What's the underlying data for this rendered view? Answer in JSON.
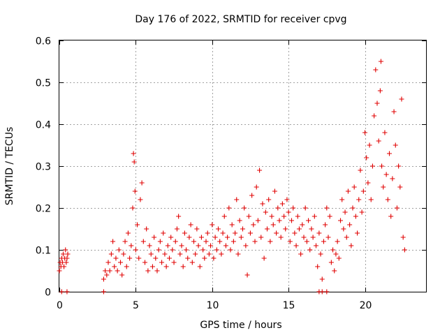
{
  "chart_data": {
    "type": "scatter",
    "title": "Day 176 of 2022, SRMTID for receiver cpvg",
    "xlabel": "GPS time / hours",
    "ylabel": "SRMTID / TECUs",
    "xlim": [
      0,
      24
    ],
    "ylim": [
      0,
      0.6
    ],
    "x_ticks": [
      0,
      5,
      10,
      15,
      20
    ],
    "x_tick_labels": [
      "0",
      "5",
      "10",
      "15",
      "20"
    ],
    "y_ticks": [
      0,
      0.1,
      0.2,
      0.3,
      0.4,
      0.5,
      0.6
    ],
    "y_tick_labels": [
      "0",
      "0.1",
      "0.2",
      "0.3",
      "0.4",
      "0.5",
      "0.6"
    ],
    "grid": true,
    "marker": "+",
    "color": "#e00000",
    "series": [
      {
        "name": "SRMTID",
        "points": [
          [
            0.0,
            0.05
          ],
          [
            0.05,
            0.07
          ],
          [
            0.1,
            0.06
          ],
          [
            0.15,
            0.08
          ],
          [
            0.2,
            0.07
          ],
          [
            0.25,
            0.09
          ],
          [
            0.3,
            0.06
          ],
          [
            0.35,
            0.08
          ],
          [
            0.4,
            0.1
          ],
          [
            0.45,
            0.07
          ],
          [
            0.5,
            0.08
          ],
          [
            0.55,
            0.09
          ],
          [
            0.15,
            0.0
          ],
          [
            0.5,
            0.0
          ],
          [
            2.9,
            0.0
          ],
          [
            17.0,
            0.0
          ],
          [
            17.2,
            0.0
          ],
          [
            17.5,
            0.0
          ],
          [
            2.9,
            0.03
          ],
          [
            3.0,
            0.05
          ],
          [
            3.1,
            0.04
          ],
          [
            3.2,
            0.07
          ],
          [
            3.3,
            0.05
          ],
          [
            3.4,
            0.09
          ],
          [
            3.5,
            0.12
          ],
          [
            3.6,
            0.06
          ],
          [
            3.7,
            0.08
          ],
          [
            3.8,
            0.05
          ],
          [
            3.9,
            0.1
          ],
          [
            4.0,
            0.07
          ],
          [
            4.1,
            0.04
          ],
          [
            4.2,
            0.09
          ],
          [
            4.3,
            0.12
          ],
          [
            4.4,
            0.06
          ],
          [
            4.5,
            0.14
          ],
          [
            4.6,
            0.08
          ],
          [
            4.7,
            0.11
          ],
          [
            4.8,
            0.2
          ],
          [
            4.85,
            0.33
          ],
          [
            4.9,
            0.31
          ],
          [
            4.95,
            0.24
          ],
          [
            5.0,
            0.1
          ],
          [
            5.1,
            0.16
          ],
          [
            5.2,
            0.08
          ],
          [
            5.3,
            0.22
          ],
          [
            5.4,
            0.26
          ],
          [
            5.5,
            0.12
          ],
          [
            5.6,
            0.07
          ],
          [
            5.7,
            0.15
          ],
          [
            5.8,
            0.05
          ],
          [
            5.9,
            0.11
          ],
          [
            6.0,
            0.09
          ],
          [
            6.1,
            0.06
          ],
          [
            6.2,
            0.13
          ],
          [
            6.3,
            0.08
          ],
          [
            6.4,
            0.05
          ],
          [
            6.5,
            0.1
          ],
          [
            6.6,
            0.12
          ],
          [
            6.7,
            0.07
          ],
          [
            6.8,
            0.14
          ],
          [
            6.9,
            0.09
          ],
          [
            7.0,
            0.06
          ],
          [
            7.1,
            0.11
          ],
          [
            7.2,
            0.08
          ],
          [
            7.3,
            0.13
          ],
          [
            7.4,
            0.1
          ],
          [
            7.5,
            0.07
          ],
          [
            7.6,
            0.12
          ],
          [
            7.7,
            0.15
          ],
          [
            7.8,
            0.18
          ],
          [
            7.9,
            0.09
          ],
          [
            8.0,
            0.11
          ],
          [
            8.1,
            0.06
          ],
          [
            8.2,
            0.14
          ],
          [
            8.3,
            0.1
          ],
          [
            8.4,
            0.08
          ],
          [
            8.5,
            0.13
          ],
          [
            8.6,
            0.16
          ],
          [
            8.7,
            0.07
          ],
          [
            8.8,
            0.12
          ],
          [
            8.9,
            0.09
          ],
          [
            9.0,
            0.15
          ],
          [
            9.1,
            0.11
          ],
          [
            9.2,
            0.06
          ],
          [
            9.3,
            0.13
          ],
          [
            9.4,
            0.1
          ],
          [
            9.5,
            0.08
          ],
          [
            9.6,
            0.12
          ],
          [
            9.7,
            0.14
          ],
          [
            9.8,
            0.09
          ],
          [
            9.9,
            0.11
          ],
          [
            10.0,
            0.16
          ],
          [
            10.1,
            0.08
          ],
          [
            10.2,
            0.13
          ],
          [
            10.3,
            0.1
          ],
          [
            10.4,
            0.15
          ],
          [
            10.5,
            0.12
          ],
          [
            10.6,
            0.09
          ],
          [
            10.7,
            0.14
          ],
          [
            10.8,
            0.18
          ],
          [
            10.9,
            0.11
          ],
          [
            11.0,
            0.13
          ],
          [
            11.1,
            0.2
          ],
          [
            11.2,
            0.1
          ],
          [
            11.3,
            0.16
          ],
          [
            11.4,
            0.12
          ],
          [
            11.5,
            0.14
          ],
          [
            11.6,
            0.22
          ],
          [
            11.7,
            0.09
          ],
          [
            11.8,
            0.17
          ],
          [
            11.9,
            0.13
          ],
          [
            12.0,
            0.15
          ],
          [
            12.1,
            0.2
          ],
          [
            12.2,
            0.11
          ],
          [
            12.3,
            0.04
          ],
          [
            12.4,
            0.18
          ],
          [
            12.5,
            0.14
          ],
          [
            12.6,
            0.23
          ],
          [
            12.7,
            0.16
          ],
          [
            12.8,
            0.12
          ],
          [
            12.9,
            0.25
          ],
          [
            13.0,
            0.17
          ],
          [
            13.1,
            0.29
          ],
          [
            13.2,
            0.13
          ],
          [
            13.3,
            0.21
          ],
          [
            13.4,
            0.08
          ],
          [
            13.5,
            0.19
          ],
          [
            13.6,
            0.15
          ],
          [
            13.7,
            0.22
          ],
          [
            13.8,
            0.12
          ],
          [
            13.9,
            0.18
          ],
          [
            14.0,
            0.16
          ],
          [
            14.1,
            0.24
          ],
          [
            14.2,
            0.14
          ],
          [
            14.3,
            0.2
          ],
          [
            14.4,
            0.17
          ],
          [
            14.5,
            0.13
          ],
          [
            14.6,
            0.21
          ],
          [
            14.7,
            0.18
          ],
          [
            14.8,
            0.15
          ],
          [
            14.9,
            0.22
          ],
          [
            15.0,
            0.19
          ],
          [
            15.1,
            0.12
          ],
          [
            15.2,
            0.17
          ],
          [
            15.3,
            0.2
          ],
          [
            15.4,
            0.14
          ],
          [
            15.5,
            0.11
          ],
          [
            15.6,
            0.18
          ],
          [
            15.7,
            0.15
          ],
          [
            15.8,
            0.09
          ],
          [
            15.9,
            0.16
          ],
          [
            16.0,
            0.13
          ],
          [
            16.1,
            0.2
          ],
          [
            16.2,
            0.12
          ],
          [
            16.3,
            0.17
          ],
          [
            16.4,
            0.1
          ],
          [
            16.5,
            0.15
          ],
          [
            16.6,
            0.13
          ],
          [
            16.7,
            0.18
          ],
          [
            16.8,
            0.11
          ],
          [
            16.9,
            0.06
          ],
          [
            17.0,
            0.14
          ],
          [
            17.1,
            0.09
          ],
          [
            17.2,
            0.03
          ],
          [
            17.3,
            0.12
          ],
          [
            17.4,
            0.16
          ],
          [
            17.5,
            0.2
          ],
          [
            17.6,
            0.13
          ],
          [
            17.7,
            0.18
          ],
          [
            17.8,
            0.07
          ],
          [
            17.9,
            0.1
          ],
          [
            18.0,
            0.05
          ],
          [
            18.1,
            0.09
          ],
          [
            18.2,
            0.12
          ],
          [
            18.3,
            0.08
          ],
          [
            18.4,
            0.17
          ],
          [
            18.5,
            0.22
          ],
          [
            18.6,
            0.15
          ],
          [
            18.7,
            0.19
          ],
          [
            18.8,
            0.13
          ],
          [
            18.9,
            0.24
          ],
          [
            19.0,
            0.16
          ],
          [
            19.1,
            0.11
          ],
          [
            19.2,
            0.2
          ],
          [
            19.3,
            0.25
          ],
          [
            19.4,
            0.18
          ],
          [
            19.5,
            0.14
          ],
          [
            19.6,
            0.22
          ],
          [
            19.7,
            0.29
          ],
          [
            19.8,
            0.19
          ],
          [
            19.9,
            0.24
          ],
          [
            20.0,
            0.38
          ],
          [
            20.1,
            0.32
          ],
          [
            20.2,
            0.26
          ],
          [
            20.3,
            0.35
          ],
          [
            20.4,
            0.22
          ],
          [
            20.5,
            0.3
          ],
          [
            20.6,
            0.42
          ],
          [
            20.7,
            0.53
          ],
          [
            20.8,
            0.45
          ],
          [
            20.9,
            0.36
          ],
          [
            21.0,
            0.48
          ],
          [
            21.05,
            0.55
          ],
          [
            21.1,
            0.3
          ],
          [
            21.2,
            0.25
          ],
          [
            21.3,
            0.38
          ],
          [
            21.4,
            0.28
          ],
          [
            21.5,
            0.22
          ],
          [
            21.6,
            0.33
          ],
          [
            21.7,
            0.18
          ],
          [
            21.8,
            0.27
          ],
          [
            21.9,
            0.43
          ],
          [
            22.0,
            0.35
          ],
          [
            22.1,
            0.2
          ],
          [
            22.2,
            0.3
          ],
          [
            22.3,
            0.25
          ],
          [
            22.4,
            0.46
          ],
          [
            22.5,
            0.13
          ],
          [
            22.6,
            0.1
          ]
        ]
      }
    ]
  }
}
